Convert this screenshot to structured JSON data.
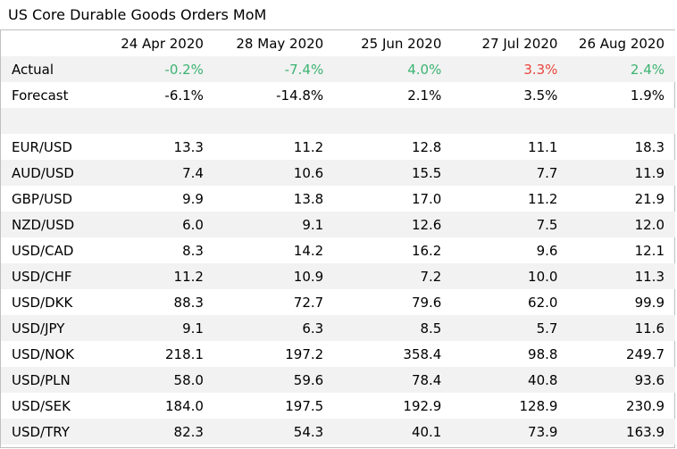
{
  "title": "US Core Durable Goods Orders MoM",
  "colors": {
    "positive": "#3cb371",
    "negative": "#e8463a",
    "shade": "#f2f2f2"
  },
  "headers": [
    "",
    "24 Apr 2020",
    "28 May 2020",
    "25 Jun 2020",
    "27 Jul 2020",
    "26 Aug 2020"
  ],
  "actual": {
    "label": "Actual",
    "values": [
      "-0.2%",
      "-7.4%",
      "4.0%",
      "3.3%",
      "2.4%"
    ],
    "tones": [
      "pos",
      "pos",
      "pos",
      "neg",
      "pos"
    ]
  },
  "forecast": {
    "label": "Forecast",
    "values": [
      "-6.1%",
      "-14.8%",
      "2.1%",
      "3.5%",
      "1.9%"
    ]
  },
  "pairs": [
    {
      "label": "EUR/USD",
      "values": [
        "13.3",
        "11.2",
        "12.8",
        "11.1",
        "18.3"
      ]
    },
    {
      "label": "AUD/USD",
      "values": [
        "7.4",
        "10.6",
        "15.5",
        "7.7",
        "11.9"
      ]
    },
    {
      "label": "GBP/USD",
      "values": [
        "9.9",
        "13.8",
        "17.0",
        "11.2",
        "21.9"
      ]
    },
    {
      "label": "NZD/USD",
      "values": [
        "6.0",
        "9.1",
        "12.6",
        "7.5",
        "12.0"
      ]
    },
    {
      "label": "USD/CAD",
      "values": [
        "8.3",
        "14.2",
        "16.2",
        "9.6",
        "12.1"
      ]
    },
    {
      "label": "USD/CHF",
      "values": [
        "11.2",
        "10.9",
        "7.2",
        "10.0",
        "11.3"
      ]
    },
    {
      "label": "USD/DKK",
      "values": [
        "88.3",
        "72.7",
        "79.6",
        "62.0",
        "99.9"
      ]
    },
    {
      "label": "USD/JPY",
      "values": [
        "9.1",
        "6.3",
        "8.5",
        "5.7",
        "11.6"
      ]
    },
    {
      "label": "USD/NOK",
      "values": [
        "218.1",
        "197.2",
        "358.4",
        "98.8",
        "249.7"
      ]
    },
    {
      "label": "USD/PLN",
      "values": [
        "58.0",
        "59.6",
        "78.4",
        "40.8",
        "93.6"
      ]
    },
    {
      "label": "USD/SEK",
      "values": [
        "184.0",
        "197.5",
        "192.9",
        "128.9",
        "230.9"
      ]
    },
    {
      "label": "USD/TRY",
      "values": [
        "82.3",
        "54.3",
        "40.1",
        "73.9",
        "163.9"
      ]
    }
  ]
}
